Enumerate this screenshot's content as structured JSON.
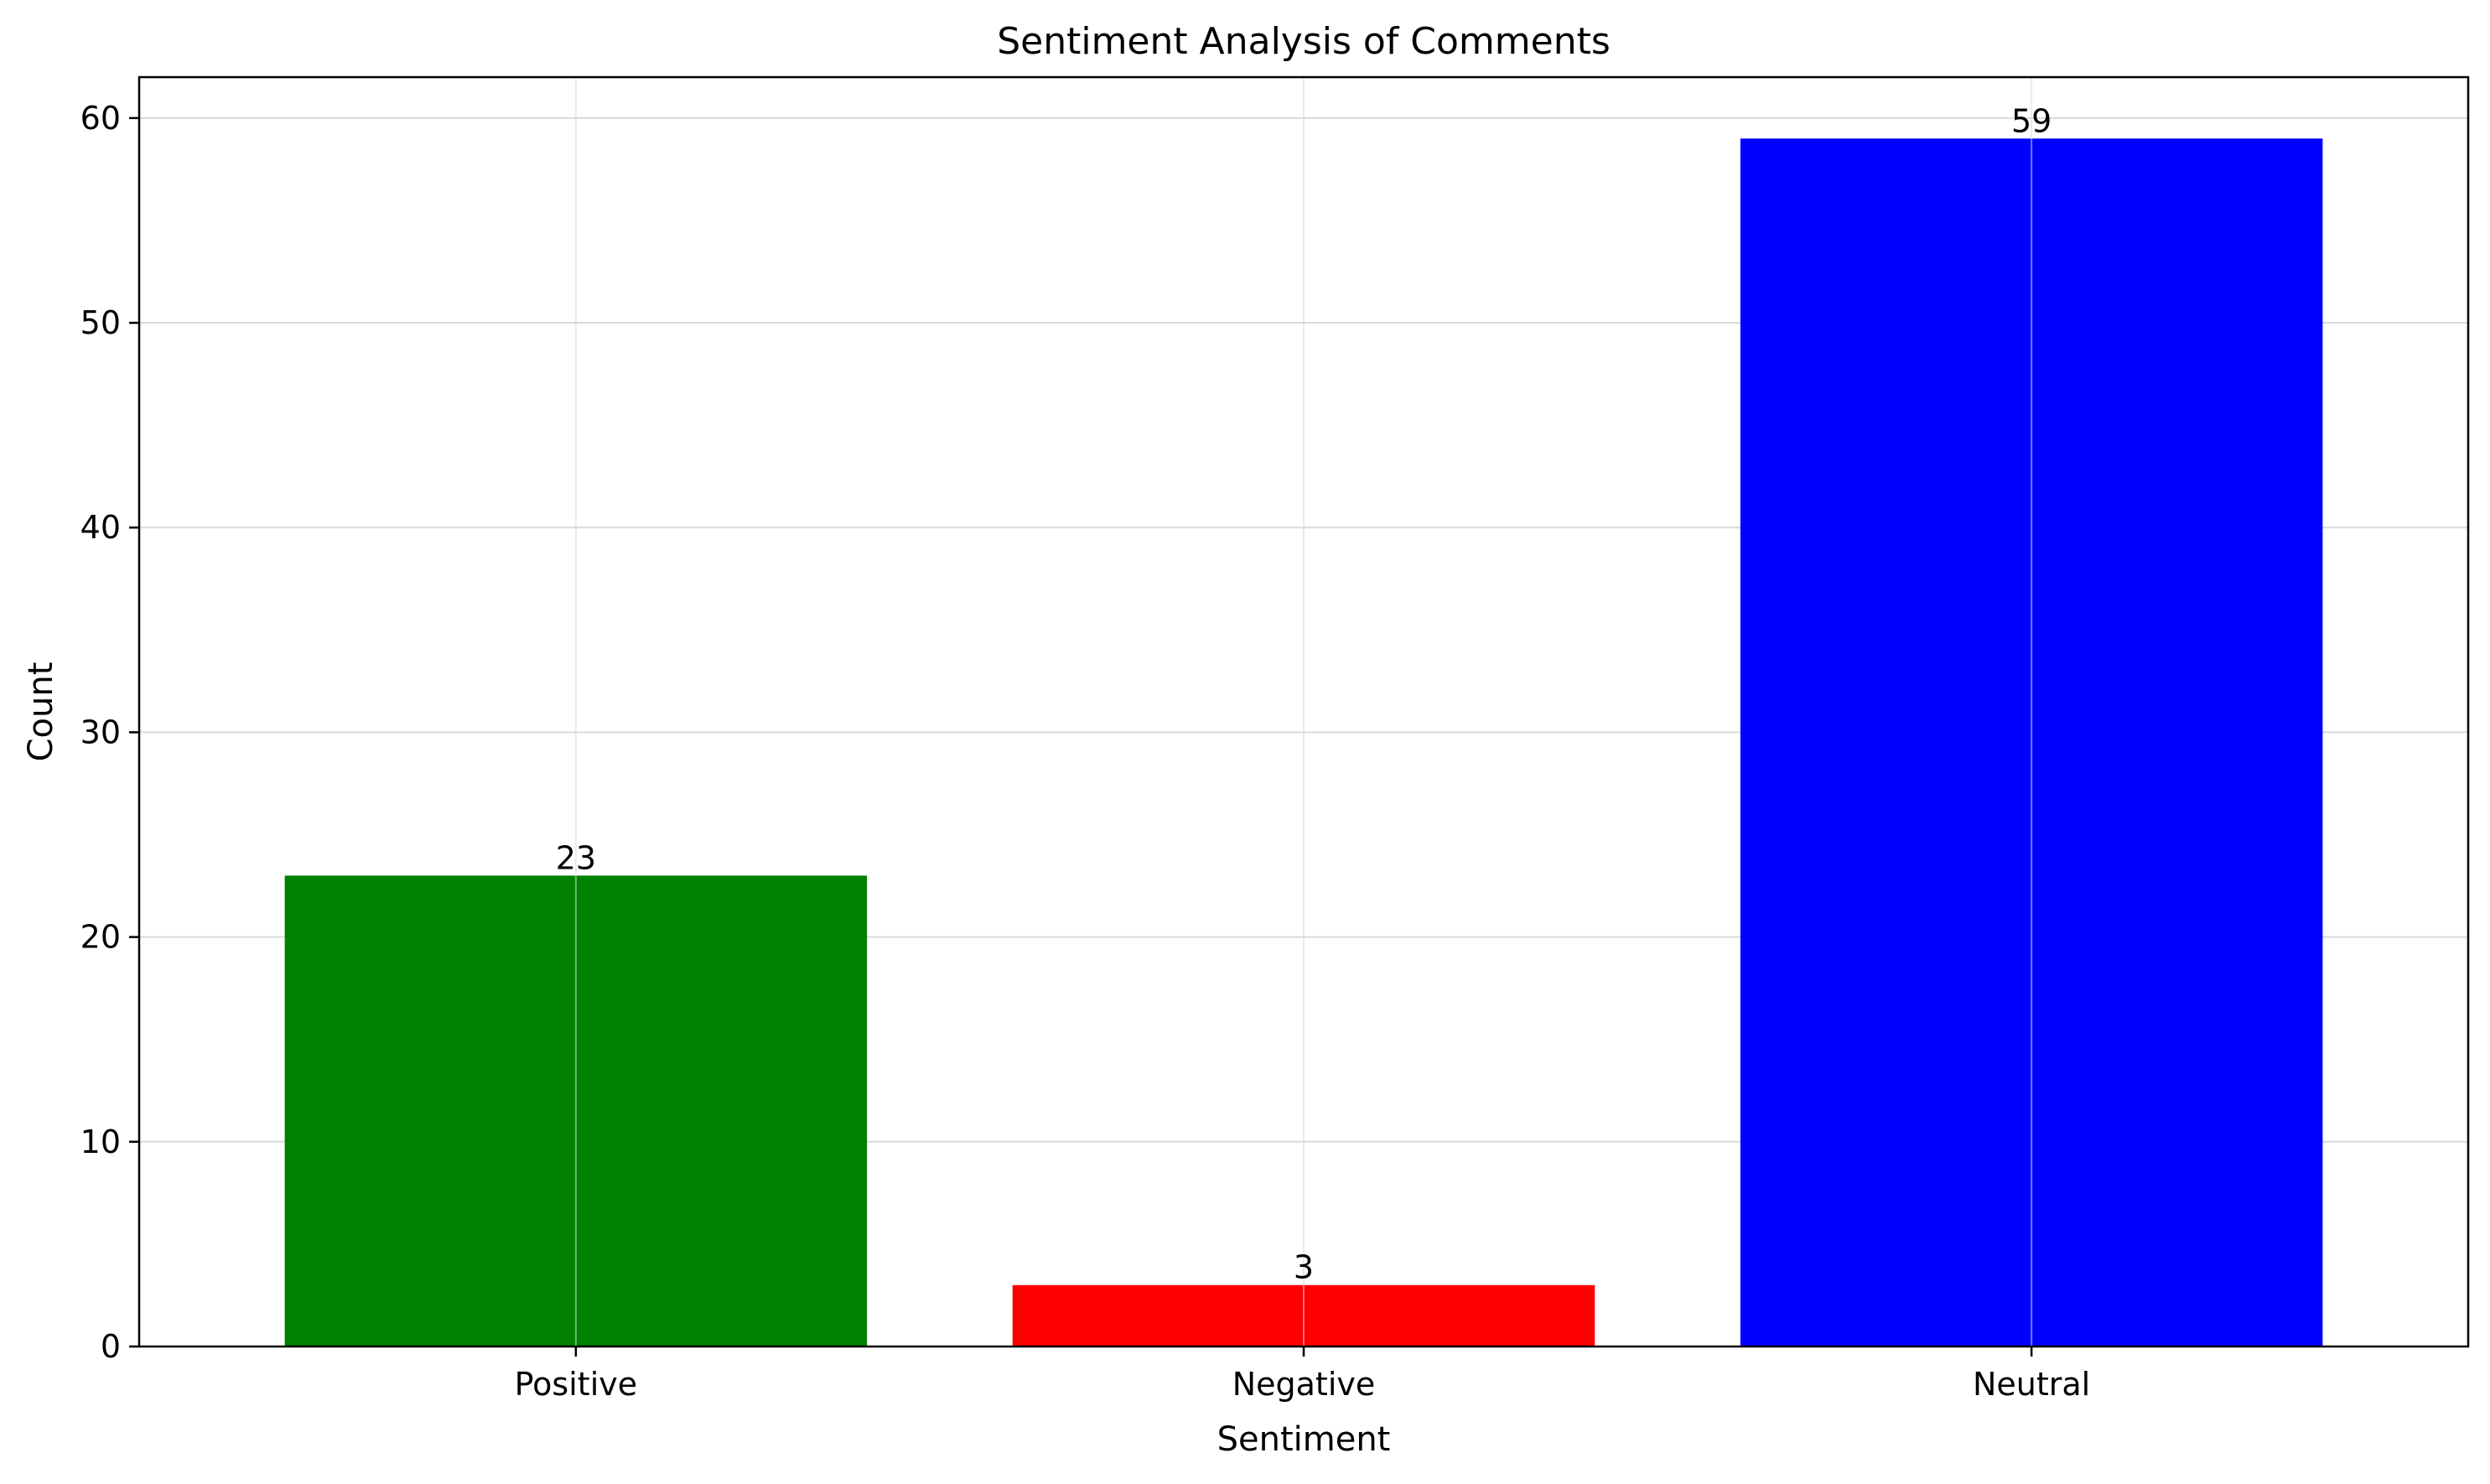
{
  "chart_data": {
    "type": "bar",
    "title": "Sentiment Analysis of Comments",
    "xlabel": "Sentiment",
    "ylabel": "Count",
    "categories": [
      "Positive",
      "Negative",
      "Neutral"
    ],
    "values": [
      23,
      3,
      59
    ],
    "colors": [
      "#008000",
      "#ff0000",
      "#0000ff"
    ],
    "ylim": [
      0,
      62
    ],
    "yticks": [
      0,
      10,
      20,
      30,
      40,
      50,
      60
    ],
    "data_labels": [
      "23",
      "3",
      "59"
    ],
    "grid": true,
    "legend": "none"
  }
}
